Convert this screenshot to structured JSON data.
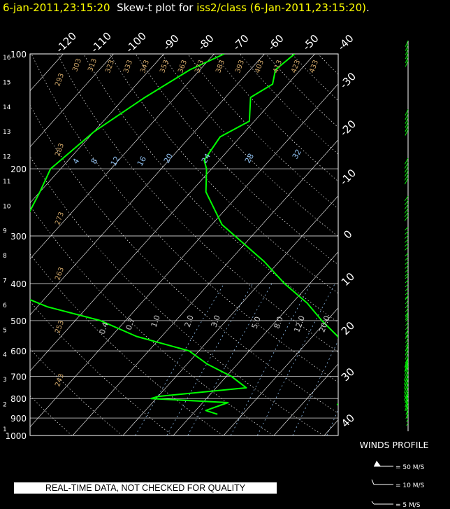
{
  "title": {
    "time_label": "6-jan-2011,23:15:20",
    "plot_label": "Skew-t plot for",
    "source": "iss2/class (6-Jan-2011,23:15:20)",
    "period": "."
  },
  "notice": "REAL-TIME DATA, NOT CHECKED FOR QUALITY",
  "winds": {
    "title": "WINDS PROFILE",
    "legend": [
      "= 50 M/S",
      "= 10 M/S",
      "= 5 M/S"
    ]
  },
  "colors": {
    "title_yellow": "#ffff00",
    "trace_green": "#00ff00",
    "mixing_ratio_blue": "#8fbfef",
    "adiabat_tan": "#c8a064",
    "grid": "#ffffff"
  },
  "chart_data": {
    "type": "line",
    "skew_t": true,
    "y_scale": "log",
    "ylabel_left_km": [
      "16",
      "15",
      "14",
      "13",
      "12",
      "11",
      "10",
      "9",
      "8",
      "7",
      "6",
      "5",
      "4",
      "3",
      "2",
      "1"
    ],
    "pressure_labels": [
      "100",
      "200",
      "300",
      "400",
      "500",
      "600",
      "700",
      "800",
      "900",
      "1000"
    ],
    "pressure_ticks": [
      100,
      200,
      300,
      400,
      500,
      600,
      700,
      800,
      900,
      1000
    ],
    "height_ticks_km": [
      16,
      15,
      14,
      13,
      12,
      11,
      10,
      9,
      8,
      7,
      6,
      5,
      4,
      3,
      2,
      1
    ],
    "temp_top_labels": [
      "-120",
      "-110",
      "-100",
      "-90",
      "-80",
      "-70",
      "-60",
      "-50",
      "-40"
    ],
    "temp_right_labels": [
      "-30",
      "-20",
      "-10",
      "0",
      "10",
      "20",
      "30",
      "40"
    ],
    "theta_labels": [
      "293",
      "303",
      "313",
      "323",
      "333",
      "343",
      "353",
      "363",
      "373",
      "383",
      "393",
      "403",
      "413",
      "423",
      "433",
      "283",
      "273",
      "263",
      "253",
      "243"
    ],
    "thetae_labels": [
      "4",
      "8",
      "12",
      "16",
      "20",
      "24",
      "28",
      "32"
    ],
    "mixing_ratio_labels": [
      "0.4",
      "0.7",
      "1.0",
      "2.0",
      "3.0",
      "5.0",
      "8.0",
      "12.0",
      "20.0"
    ],
    "series": [
      {
        "role": "temperature",
        "points": [
          [
            100,
            -64
          ],
          [
            110,
            -65
          ],
          [
            120,
            -63
          ],
          [
            130,
            -65
          ],
          [
            150,
            -61
          ],
          [
            165,
            -64
          ],
          [
            190,
            -63
          ],
          [
            200,
            -61
          ],
          [
            230,
            -57
          ],
          [
            280,
            -48
          ],
          [
            350,
            -33
          ],
          [
            400,
            -25
          ],
          [
            450,
            -17
          ],
          [
            500,
            -11
          ],
          [
            550,
            -5
          ],
          [
            600,
            -1
          ],
          [
            650,
            2
          ],
          [
            700,
            5
          ],
          [
            730,
            6
          ],
          [
            760,
            6
          ],
          [
            790,
            7
          ],
          [
            815,
            8
          ],
          [
            830,
            7
          ]
        ]
      },
      {
        "role": "dewpoint",
        "points": [
          [
            100,
            -78
          ],
          [
            110,
            -82
          ],
          [
            130,
            -86
          ],
          [
            160,
            -90
          ],
          [
            200,
            -92
          ],
          [
            230,
            -90
          ],
          [
            270,
            -88
          ],
          [
            290,
            -86
          ],
          [
            320,
            -94
          ],
          [
            360,
            -96
          ],
          [
            380,
            -92
          ],
          [
            420,
            -78
          ],
          [
            460,
            -68
          ],
          [
            500,
            -55
          ],
          [
            550,
            -45
          ],
          [
            600,
            -32
          ],
          [
            650,
            -26
          ],
          [
            700,
            -19
          ],
          [
            750,
            -14
          ],
          [
            790,
            -30
          ],
          [
            800,
            -31
          ],
          [
            820,
            -15
          ],
          [
            860,
            -18
          ],
          [
            880,
            -15
          ]
        ]
      }
    ],
    "winds_profile": [
      {
        "p": 100,
        "speed": 15,
        "dir": 300
      },
      {
        "p": 150,
        "speed": 25,
        "dir": 295
      },
      {
        "p": 200,
        "speed": 40,
        "dir": 290
      },
      {
        "p": 250,
        "speed": 45,
        "dir": 285
      },
      {
        "p": 300,
        "speed": 45,
        "dir": 280
      },
      {
        "p": 350,
        "speed": 40,
        "dir": 280
      },
      {
        "p": 400,
        "speed": 35,
        "dir": 280
      },
      {
        "p": 450,
        "speed": 30,
        "dir": 285
      },
      {
        "p": 500,
        "speed": 25,
        "dir": 285
      },
      {
        "p": 550,
        "speed": 22,
        "dir": 290
      },
      {
        "p": 600,
        "speed": 20,
        "dir": 300
      },
      {
        "p": 650,
        "speed": 15,
        "dir": 320
      },
      {
        "p": 700,
        "speed": 12,
        "dir": 330
      },
      {
        "p": 750,
        "speed": 10,
        "dir": 320
      },
      {
        "p": 800,
        "speed": 8,
        "dir": 300
      },
      {
        "p": 850,
        "speed": 6,
        "dir": 280
      }
    ]
  }
}
